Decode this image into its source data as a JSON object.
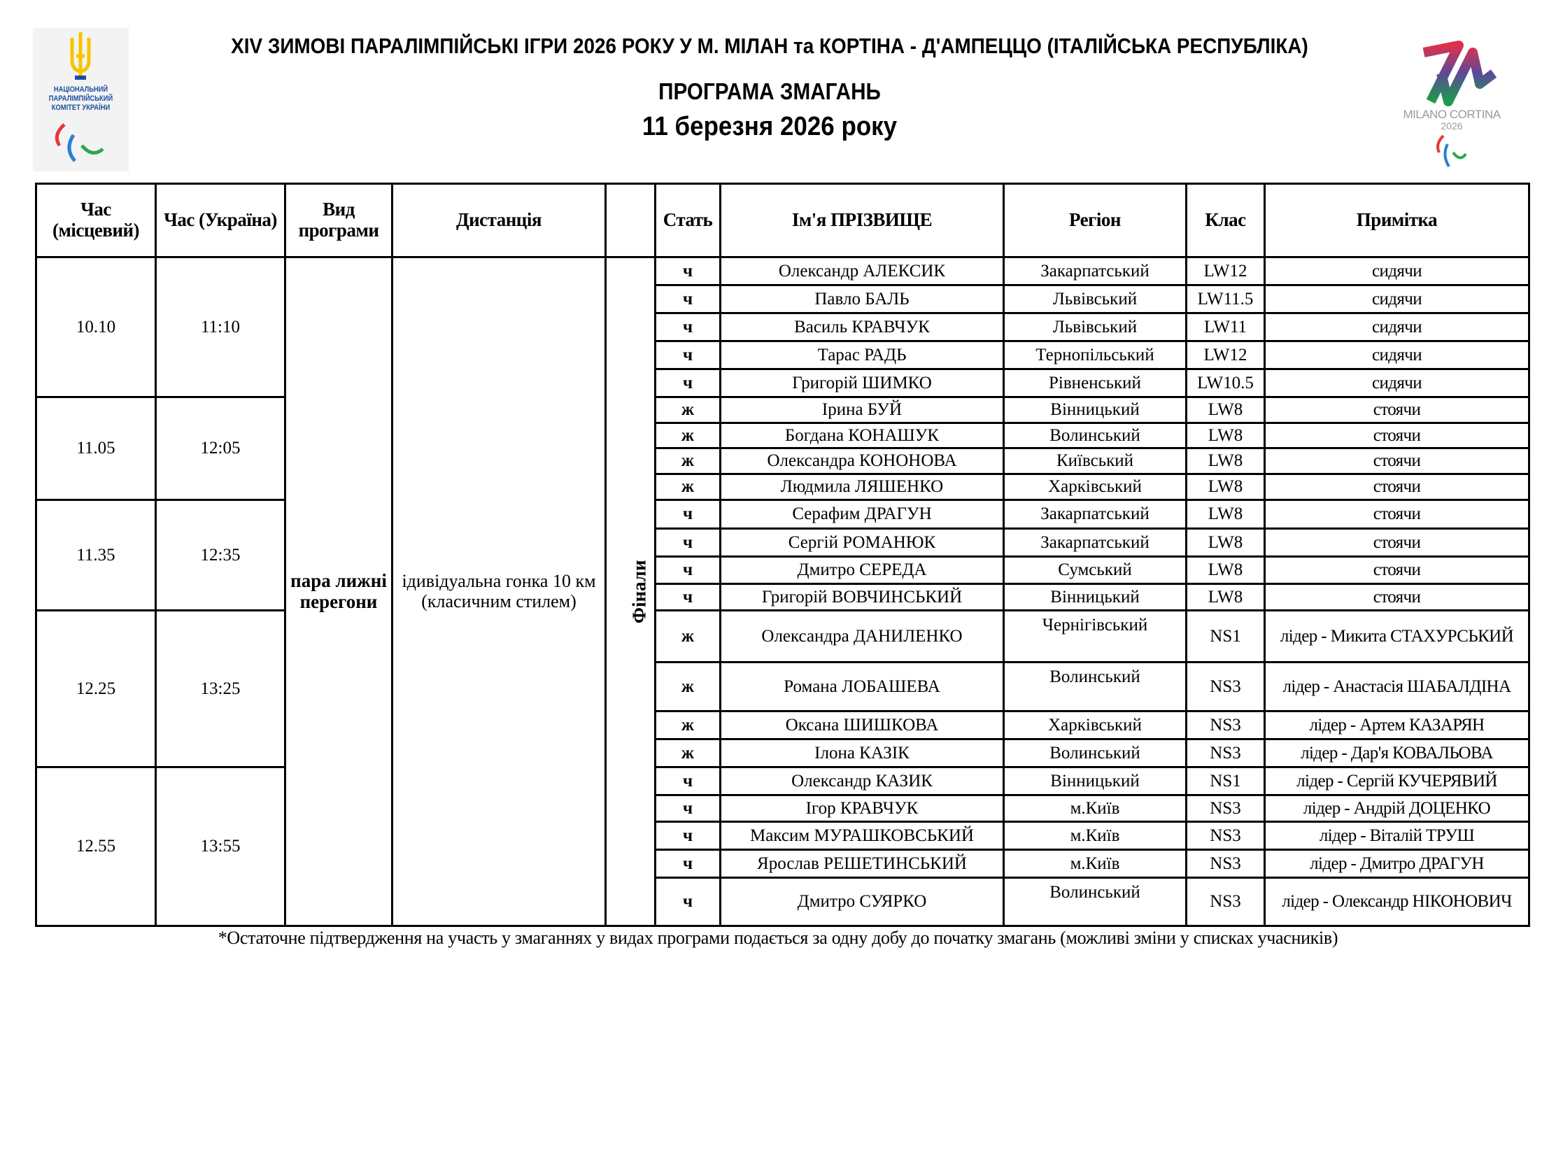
{
  "header": {
    "title": "XIV ЗИМОВІ ПАРАЛІМПІЙСЬКІ ІГРИ 2026 РОКУ У М. МІЛАН та КОРТІНА - Д'АМПЕЦЦО (ІТАЛІЙСЬКА РЕСПУБЛІКА)",
    "subtitle": "ПРОГРАМА ЗМАГАНЬ",
    "date": "11 березня 2026 року"
  },
  "logos": {
    "left_text": "НАЦІОНАЛЬНИЙ ПАРАЛІМПІЙСЬКИЙ КОМІТЕТ УКРАЇНИ",
    "right_text": "MILANO CORTINA",
    "right_year": "2026",
    "colors": {
      "ukraine_yellow": "#f5c400",
      "ukraine_blue": "#1a4fa0",
      "agitos_red": "#e03a3e",
      "agitos_blue": "#2a7fd0",
      "agitos_green": "#2aa84a"
    }
  },
  "table": {
    "headers": [
      "Час (місцевий)",
      "Час (Україна)",
      "Вид програми",
      "Дистанція",
      "",
      "Стать",
      "Ім'я ПРІЗВИЩЕ",
      "Регіон",
      "Клас",
      "Примітка"
    ],
    "program": "пара лижні перегони",
    "distance": "ідивідуальна гонка 10 км (класичним стилем)",
    "stage": "Фінали",
    "time_groups": [
      {
        "local": "10.10",
        "ukraine": "11:10",
        "rows": 5
      },
      {
        "local": "11.05",
        "ukraine": "12:05",
        "rows": 4
      },
      {
        "local": "11.35",
        "ukraine": "12:35",
        "rows": 4
      },
      {
        "local": "12.25",
        "ukraine": "13:25",
        "rows": 4
      },
      {
        "local": "12.55",
        "ukraine": "13:55",
        "rows": 5
      }
    ],
    "rows": [
      {
        "sex": "ч",
        "name": "Олександр АЛЕКСИК",
        "region": "Закарпатський",
        "class": "LW12",
        "note": "сидячи"
      },
      {
        "sex": "ч",
        "name": "Павло БАЛЬ",
        "region": "Львівський",
        "class": "LW11.5",
        "note": "сидячи"
      },
      {
        "sex": "ч",
        "name": "Василь КРАВЧУК",
        "region": "Львівський",
        "class": "LW11",
        "note": "сидячи"
      },
      {
        "sex": "ч",
        "name": "Тарас РАДЬ",
        "region": "Тернопільський",
        "class": "LW12",
        "note": "сидячи"
      },
      {
        "sex": "ч",
        "name": "Григорій ШИМКО",
        "region": "Рівненський",
        "class": "LW10.5",
        "note": "сидячи"
      },
      {
        "sex": "ж",
        "name": "Ірина БУЙ",
        "region": "Вінницький",
        "class": "LW8",
        "note": "стоячи"
      },
      {
        "sex": "ж",
        "name": "Богдана КОНАШУК",
        "region": "Волинський",
        "class": "LW8",
        "note": "стоячи"
      },
      {
        "sex": "ж",
        "name": "Олександра КОНОНОВА",
        "region": "Київський",
        "class": "LW8",
        "note": "стоячи"
      },
      {
        "sex": "ж",
        "name": "Людмила ЛЯШЕНКО",
        "region": "Харківський",
        "class": "LW8",
        "note": "стоячи"
      },
      {
        "sex": "ч",
        "name": "Серафим ДРАГУН",
        "region": "Закарпатський",
        "class": "LW8",
        "note": "стоячи"
      },
      {
        "sex": "ч",
        "name": "Сергій РОМАНЮК",
        "region": "Закарпатський",
        "class": "LW8",
        "note": "стоячи"
      },
      {
        "sex": "ч",
        "name": "Дмитро СЕРЕДА",
        "region": "Сумський",
        "class": "LW8",
        "note": "стоячи"
      },
      {
        "sex": "ч",
        "name": "Григорій ВОВЧИНСЬКИЙ",
        "region": "Вінницький",
        "class": "LW8",
        "note": "стоячи"
      },
      {
        "sex": "ж",
        "name": "Олександра ДАНИЛЕНКО",
        "region": "Чернігівський",
        "class": "NS1",
        "note": "лідер - Микита СТАХУРСЬКИЙ",
        "region_top": true
      },
      {
        "sex": "ж",
        "name": "Романа ЛОБАШЕВА",
        "region": "Волинський",
        "class": "NS3",
        "note": "лідер - Анастасія ШАБАЛДІНА",
        "region_top": true
      },
      {
        "sex": "ж",
        "name": "Оксана ШИШКОВА",
        "region": "Харківський",
        "class": "NS3",
        "note": "лідер - Артем КАЗАРЯН"
      },
      {
        "sex": "ж",
        "name": "Ілона КАЗІК",
        "region": "Волинський",
        "class": "NS3",
        "note": "лідер - Дар'я КОВАЛЬОВА"
      },
      {
        "sex": "ч",
        "name": "Олександр КАЗИК",
        "region": "Вінницький",
        "class": "NS1",
        "note": "лідер - Сергій КУЧЕРЯВИЙ"
      },
      {
        "sex": "ч",
        "name": "Ігор КРАВЧУК",
        "region": "м.Київ",
        "class": "NS3",
        "note": "лідер - Андрій ДОЦЕНКО"
      },
      {
        "sex": "ч",
        "name": "Максим МУРАШКОВСЬКИЙ",
        "region": "м.Київ",
        "class": "NS3",
        "note": "лідер - Віталій ТРУШ"
      },
      {
        "sex": "ч",
        "name": "Ярослав РЕШЕТИНСЬКИЙ",
        "region": "м.Київ",
        "class": "NS3",
        "note": "лідер - Дмитро ДРАГУН"
      },
      {
        "sex": "ч",
        "name": "Дмитро СУЯРКО",
        "region": "Волинський",
        "class": "NS3",
        "note": "лідер - Олександр НІКОНОВИЧ",
        "region_top": true
      }
    ]
  },
  "footer": "*Остаточне підтвердження на участь у змаганнях у видах програми подається за одну добу до початку змагань (можливі зміни у списках учасників)"
}
